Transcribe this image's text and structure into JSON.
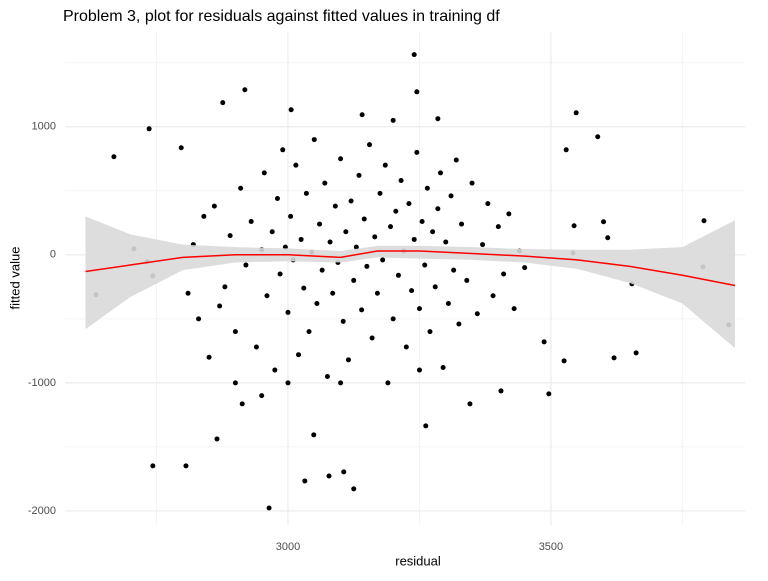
{
  "chart_data": {
    "type": "scatter",
    "title": "Problem 3, plot for residuals against fitted values in training df",
    "x_label": "residual",
    "y_label": "fitted value",
    "xlim": [
      2576,
      3869
    ],
    "ylim": [
      -2110,
      1740
    ],
    "xticks": [
      3000,
      3500
    ],
    "yticks": [
      -2000,
      -1000,
      0,
      1000
    ],
    "x_minor_ticks": [
      2750,
      3250,
      3750
    ],
    "y_minor_ticks": [
      -1500,
      -500,
      500,
      1500
    ],
    "grid": true,
    "series": [
      {
        "type": "scatter",
        "color": "#000000",
        "x": [
          2635,
          2669,
          2707,
          2736,
          2732,
          2743,
          2743,
          2797,
          2806,
          2876,
          2918,
          2913,
          2865,
          2964,
          3032,
          3049,
          3006,
          3078,
          3106,
          3125,
          3240,
          3245,
          3141,
          3285,
          3262,
          3346,
          3405,
          3487,
          3496,
          3525,
          3529,
          3548,
          3589,
          3600,
          3608,
          3542,
          3544,
          3620,
          3662,
          3654,
          3789,
          3791,
          3838,
          2860,
          2880,
          2890,
          2900,
          2910,
          2920,
          2930,
          2940,
          2950,
          2955,
          2960,
          2970,
          2975,
          2980,
          2985,
          2990,
          2995,
          3000,
          3005,
          3010,
          3015,
          3020,
          3025,
          3030,
          3035,
          3040,
          3045,
          3050,
          3055,
          3060,
          3065,
          3070,
          3075,
          3080,
          3085,
          3090,
          3095,
          3100,
          3105,
          3110,
          3115,
          3120,
          3125,
          3130,
          3135,
          3140,
          3145,
          3150,
          3155,
          3160,
          3165,
          3170,
          3175,
          3180,
          3185,
          3190,
          3195,
          3200,
          3205,
          3210,
          3215,
          3220,
          3225,
          3230,
          3235,
          3240,
          3245,
          3250,
          3255,
          3260,
          3265,
          3270,
          3275,
          3280,
          3285,
          3290,
          3295,
          3300,
          3305,
          3310,
          3315,
          3320,
          3325,
          3330,
          3340,
          3350,
          3360,
          3370,
          3380,
          3390,
          3400,
          3410,
          3420,
          3430,
          3440,
          3450,
          2830,
          2840,
          2870,
          2820,
          2810,
          2850,
          2900,
          3000,
          3100,
          3200,
          3250,
          2950
        ],
        "y": [
          -312,
          766,
          47,
          984,
          -55,
          -164,
          -1648,
          836,
          -1648,
          1188,
          1289,
          -1164,
          -1438,
          -1977,
          -1766,
          -1406,
          1133,
          -1727,
          -1695,
          -1828,
          1563,
          1273,
          1094,
          1063,
          -1336,
          -1164,
          -1063,
          -680,
          -1086,
          -828,
          820,
          1109,
          922,
          258,
          133,
          16,
          227,
          -805,
          -766,
          -227,
          -94,
          266,
          -547,
          380,
          -250,
          150,
          -600,
          520,
          -80,
          260,
          -720,
          40,
          640,
          -320,
          180,
          -900,
          440,
          -150,
          820,
          60,
          -450,
          300,
          -40,
          700,
          -780,
          120,
          -260,
          480,
          -600,
          20,
          900,
          -380,
          240,
          -120,
          560,
          -950,
          100,
          -300,
          380,
          -60,
          750,
          -520,
          180,
          -820,
          420,
          -200,
          60,
          620,
          -430,
          280,
          -90,
          860,
          -650,
          140,
          -300,
          480,
          -40,
          700,
          -1000,
          220,
          -500,
          340,
          -160,
          580,
          30,
          -720,
          400,
          -280,
          120,
          800,
          -420,
          260,
          -80,
          520,
          -600,
          180,
          -250,
          360,
          640,
          -880,
          100,
          -380,
          460,
          -120,
          740,
          -540,
          240,
          -200,
          560,
          -460,
          80,
          400,
          -320,
          220,
          -150,
          320,
          -420,
          30,
          -100,
          -500,
          300,
          -400,
          80,
          -300,
          -800,
          -1000,
          -1000,
          -1000,
          1050,
          -900,
          -1100
        ]
      },
      {
        "type": "line",
        "color": "#ff0000",
        "band_color": "#d9d9d9",
        "x": [
          2615,
          2700,
          2800,
          2900,
          3000,
          3100,
          3170,
          3250,
          3350,
          3450,
          3550,
          3650,
          3750,
          3850
        ],
        "y": [
          -130,
          -80,
          -20,
          0,
          0,
          -20,
          30,
          30,
          10,
          -10,
          -40,
          -90,
          -160,
          -240
        ],
        "lower": [
          -580,
          -330,
          -120,
          -60,
          -50,
          -60,
          -20,
          -30,
          -40,
          -60,
          -110,
          -220,
          -380,
          -730
        ],
        "upper": [
          300,
          160,
          80,
          60,
          50,
          30,
          70,
          70,
          60,
          45,
          40,
          40,
          60,
          270
        ]
      }
    ]
  }
}
